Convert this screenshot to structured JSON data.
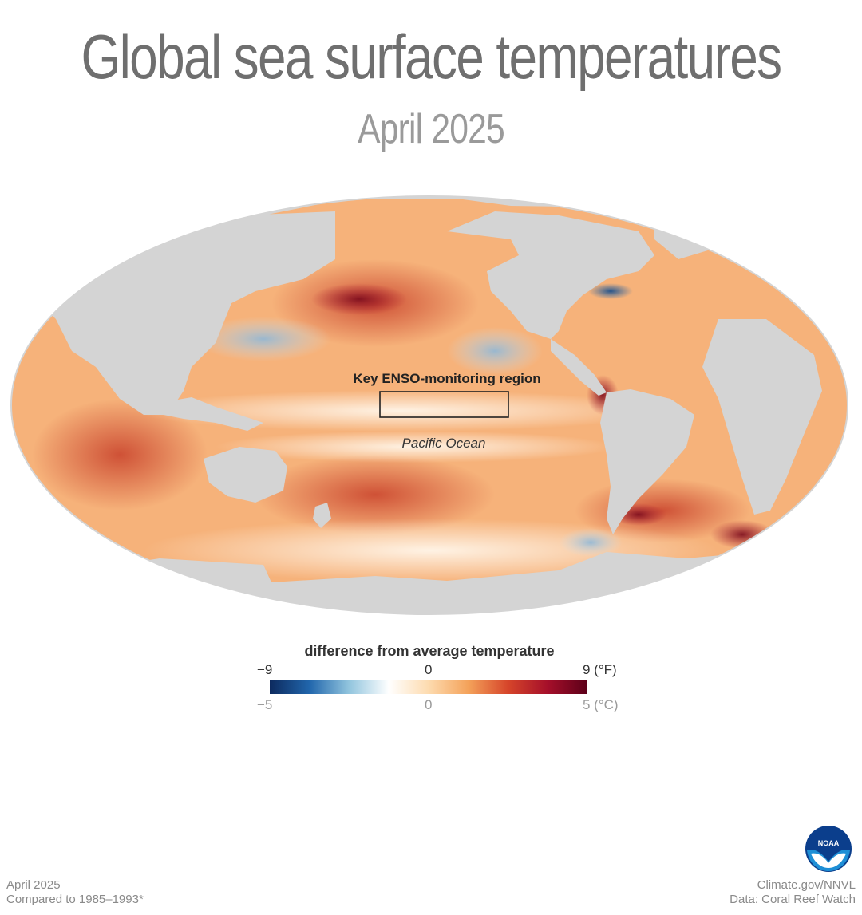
{
  "title": "Global sea surface temperatures",
  "subtitle": "April 2025",
  "map": {
    "enso_label": "Key ENSO-monitoring region",
    "ocean_label": "Pacific Ocean"
  },
  "legend": {
    "title": "difference from average temperature",
    "fahrenheit": {
      "min": "−9",
      "mid": "0",
      "max": "9 (°F)"
    },
    "celsius": {
      "min": "−5",
      "mid": "0",
      "max": "5 (°C)"
    },
    "colors": [
      "#0d2a5e",
      "#2166ac",
      "#92c5de",
      "#ffffff",
      "#fddbaf",
      "#f4a25a",
      "#d6452a",
      "#a50f2a",
      "#5c0019"
    ]
  },
  "footer": {
    "left_line1": "April 2025",
    "left_line2": "Compared to 1985–1993*",
    "right_line1": "Climate.gov/NNVL",
    "right_line2": "Data: Coral Reef Watch"
  },
  "logo": {
    "text": "NOAA",
    "icon": "noaa-logo"
  },
  "palette": {
    "land": "#d4d4d4",
    "warm": "#f4a25a",
    "cool": "#92c5de",
    "box": "#222222"
  }
}
